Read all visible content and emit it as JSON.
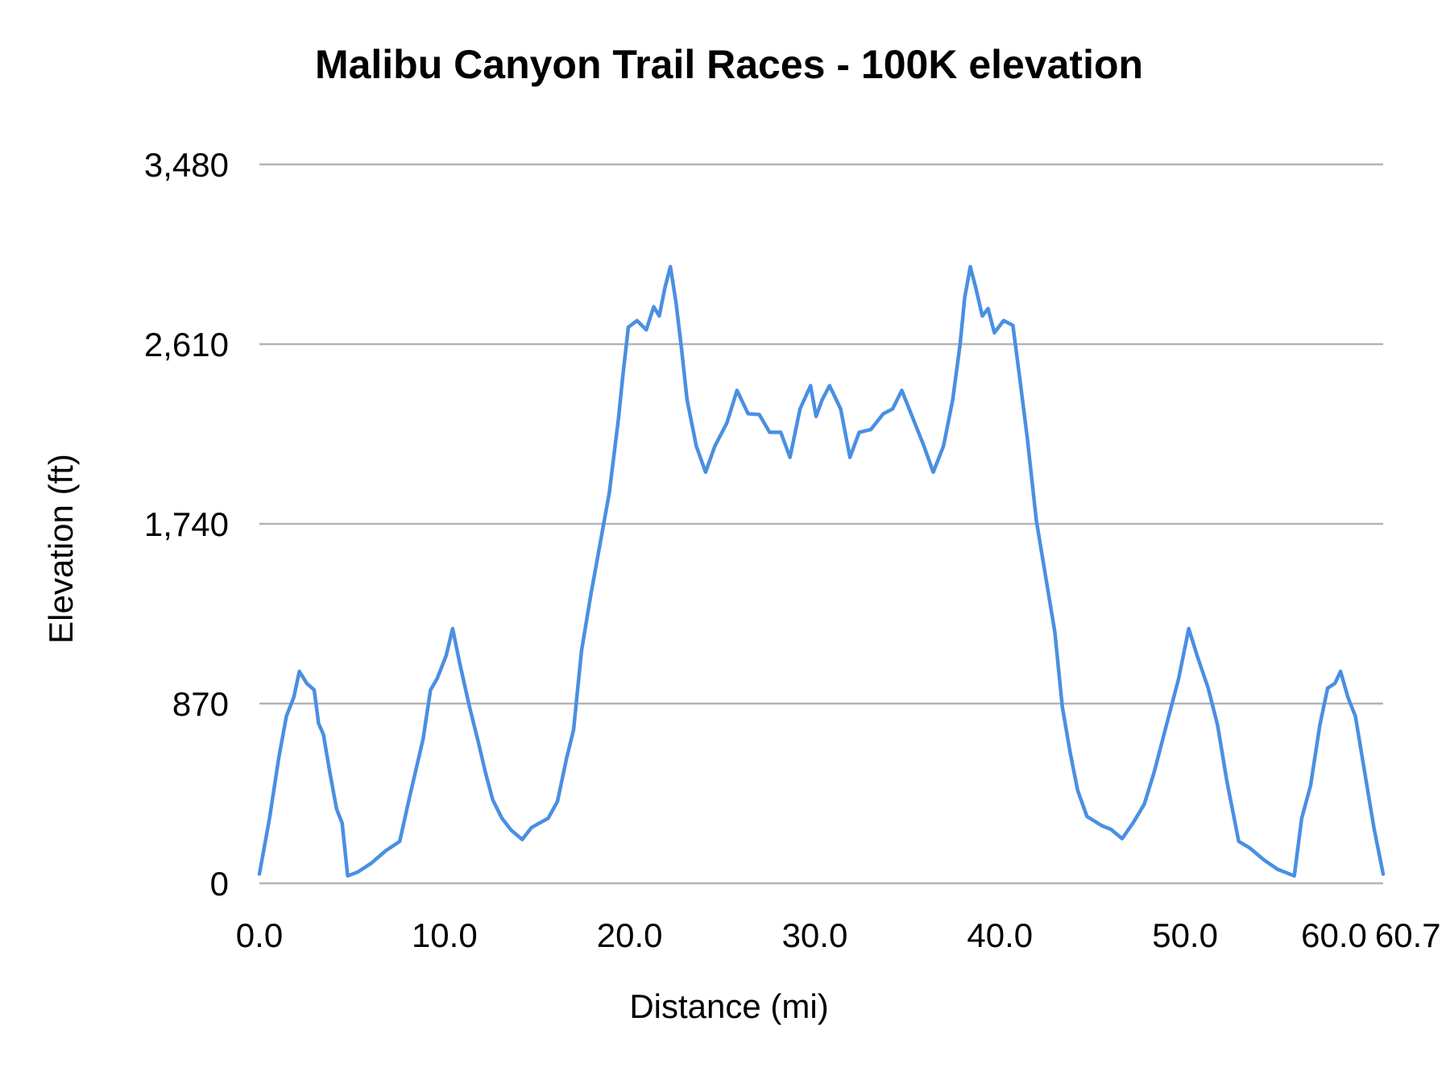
{
  "chart_data": {
    "type": "line",
    "title": "Malibu Canyon Trail Races  - 100K elevation",
    "xlabel": "Distance (mi)",
    "ylabel": "Elevation (ft)",
    "xlim": [
      0,
      60.7
    ],
    "ylim": [
      0,
      3480
    ],
    "x_ticks": [
      "0.0",
      "10.0",
      "20.0",
      "30.0",
      "40.0",
      "50.0",
      "60.0",
      "60.7"
    ],
    "x_tick_values": [
      0,
      10,
      20,
      30,
      40,
      50,
      60,
      60.7
    ],
    "y_ticks": [
      "0",
      "870",
      "1,740",
      "2,610",
      "3,480"
    ],
    "y_tick_values": [
      0,
      870,
      1740,
      2610,
      3480
    ],
    "grid": "horizontal",
    "legend": "none",
    "line_color": "#4a8fe2",
    "grid_color": "#b3b3b3",
    "series": [
      {
        "x": [
          0,
          0.55,
          1.05,
          1.46,
          1.86,
          2.16,
          2.56,
          2.96,
          3.2,
          3.46,
          3.8,
          4.17,
          4.47,
          4.77,
          5.3,
          6.07,
          6.83,
          7.58,
          8.08,
          8.84,
          9.24,
          9.6,
          10.09,
          10.44,
          10.84,
          11.35,
          11.85,
          12.2,
          12.6,
          13.1,
          13.6,
          14.2,
          14.7,
          15.6,
          16.1,
          16.6,
          16.97,
          17.4,
          17.9,
          18.4,
          18.9,
          19.4,
          19.63,
          19.93,
          20.4,
          20.9,
          21.3,
          21.6,
          21.9,
          22.2,
          22.5,
          22.8,
          23.1,
          23.6,
          24.1,
          24.6,
          25.25,
          25.8,
          26.4,
          27.0,
          27.56,
          28.16,
          28.66,
          29.2,
          29.77,
          30.07,
          30.4,
          30.8,
          31.4,
          31.9,
          32.4,
          33.03,
          33.7,
          34.2,
          34.7,
          35.4,
          35.9,
          36.4,
          36.95,
          37.45,
          37.85,
          38.1,
          38.4,
          38.7,
          39.05,
          39.36,
          39.7,
          40.2,
          40.7,
          41.06,
          41.47,
          41.97,
          42.47,
          42.97,
          43.37,
          43.8,
          44.2,
          44.7,
          45.5,
          46.0,
          46.6,
          47.2,
          47.8,
          48.34,
          48.99,
          49.65,
          50.2,
          50.65,
          51.25,
          51.76,
          52.26,
          52.9,
          53.5,
          54.26,
          55.0,
          55.9,
          56.3,
          56.78,
          57.28,
          57.7,
          58.1,
          58.4,
          58.8,
          59.2,
          59.7,
          60.2,
          60.7
        ],
        "y": [
          45,
          315,
          608,
          810,
          900,
          1026,
          968,
          936,
          774,
          720,
          540,
          360,
          292,
          36,
          54,
          99,
          158,
          203,
          405,
          698,
          936,
          990,
          1103,
          1233,
          1058,
          855,
          675,
          540,
          405,
          315,
          257,
          212,
          270,
          315,
          396,
          608,
          743,
          1126,
          1396,
          1643,
          1891,
          2251,
          2454,
          2692,
          2724,
          2679,
          2791,
          2746,
          2881,
          2985,
          2814,
          2589,
          2341,
          2116,
          1990,
          2116,
          2228,
          2386,
          2273,
          2269,
          2183,
          2183,
          2062,
          2296,
          2409,
          2260,
          2341,
          2409,
          2296,
          2062,
          2183,
          2197,
          2273,
          2296,
          2386,
          2228,
          2116,
          1990,
          2116,
          2341,
          2611,
          2836,
          2985,
          2881,
          2746,
          2782,
          2665,
          2724,
          2701,
          2454,
          2161,
          1756,
          1486,
          1215,
          855,
          630,
          450,
          324,
          279,
          261,
          216,
          293,
          383,
          540,
          765,
          990,
          1233,
          1103,
          945,
          765,
          495,
          203,
          171,
          113,
          68,
          36,
          315,
          473,
          765,
          945,
          968,
          1026,
          900,
          810,
          540,
          270,
          45
        ]
      }
    ]
  }
}
